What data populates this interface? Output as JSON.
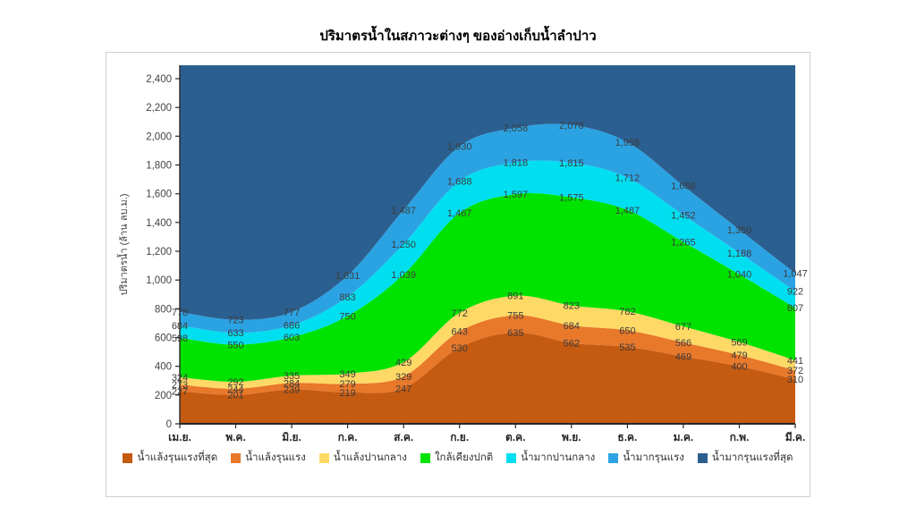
{
  "chart_data": {
    "type": "area",
    "stacked": true,
    "smoothed": true,
    "title": "ปริมาตรน้ำในสภาวะต่างๆ ของอ่างเก็บน้ำลำปาว",
    "ylabel": "ปริมาตรน้ำ (ล้าน ลบ.ม.)",
    "xlabel": "",
    "categories": [
      "เม.ย.",
      "พ.ค.",
      "มิ.ย.",
      "ก.ค.",
      "ส.ค.",
      "ก.ย.",
      "ต.ค.",
      "พ.ย.",
      "ธ.ค.",
      "ม.ค.",
      "ก.พ.",
      "มี.ค."
    ],
    "ylim": [
      0,
      2490
    ],
    "ytick_step": 200,
    "ytick_max": 2400,
    "grid": false,
    "legend_position": "bottom",
    "values_are": "cumulative_stack_tops",
    "label_color": "#3c3c3c",
    "axis_color": "#262626",
    "tick_label_color": "#444444",
    "series": [
      {
        "name": "น้ำแล้งรุนแรงที่สุด",
        "color": "#C55A11",
        "labeled": true,
        "cumulative": [
          227,
          201,
          239,
          219,
          247,
          530,
          635,
          562,
          535,
          469,
          400,
          310
        ]
      },
      {
        "name": "น้ำแล้งรุนแรง",
        "color": "#E8782A",
        "labeled": true,
        "cumulative": [
          273,
          244,
          284,
          279,
          329,
          643,
          755,
          684,
          650,
          566,
          479,
          372
        ]
      },
      {
        "name": "น้ำแล้งปานกลาง",
        "color": "#FFD966",
        "labeled": true,
        "cumulative": [
          324,
          292,
          335,
          349,
          429,
          772,
          891,
          823,
          782,
          677,
          569,
          441
        ]
      },
      {
        "name": "ใกล้เคียงปกติ",
        "color": "#00E300",
        "labeled": true,
        "cumulative": [
          598,
          550,
          603,
          750,
          1039,
          1467,
          1597,
          1575,
          1487,
          1265,
          1040,
          807
        ]
      },
      {
        "name": "น้ำมากปานกลาง",
        "color": "#00DFF0",
        "labeled": true,
        "cumulative": [
          684,
          633,
          686,
          883,
          1250,
          1688,
          1818,
          1815,
          1712,
          1452,
          1188,
          922
        ]
      },
      {
        "name": "น้ำมากรุนแรง",
        "color": "#2BA3E3",
        "labeled": true,
        "cumulative": [
          778,
          723,
          777,
          1031,
          1487,
          1930,
          2058,
          2078,
          1958,
          1656,
          1350,
          1047
        ]
      },
      {
        "name": "น้ำมากรุนแรงที่สุด",
        "color": "#2B5F8F",
        "labeled": false,
        "fills_to_top": true,
        "cumulative": null
      }
    ]
  }
}
